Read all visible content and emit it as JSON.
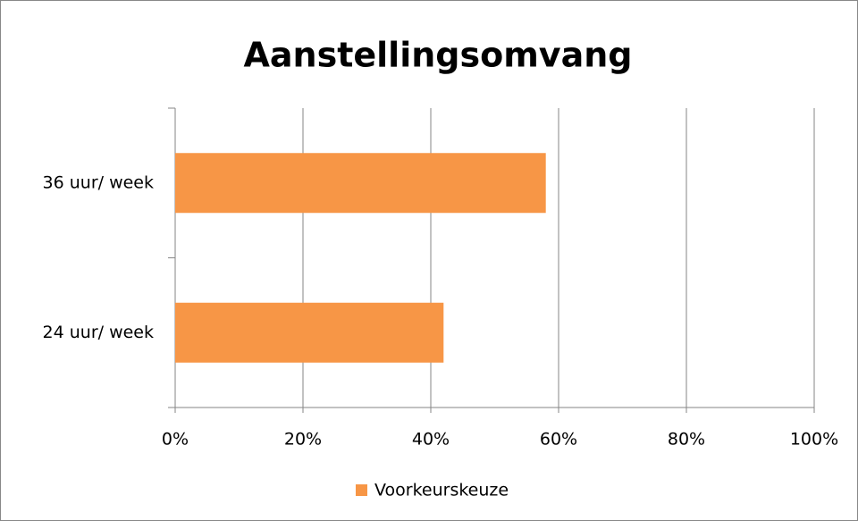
{
  "chart_data": {
    "type": "hbar",
    "title": "Aanstellingsomvang",
    "categories": [
      "36 uur/ week",
      "24 uur/ week"
    ],
    "series": [
      {
        "name": "Voorkeurskeuze",
        "color": "#f79646",
        "values": [
          58,
          42
        ]
      }
    ],
    "xlim": [
      0,
      100
    ],
    "xticks": [
      {
        "value": 0,
        "label": "0%"
      },
      {
        "value": 20,
        "label": "20%"
      },
      {
        "value": 40,
        "label": "40%"
      },
      {
        "value": 60,
        "label": "60%"
      },
      {
        "value": 80,
        "label": "80%"
      },
      {
        "value": 100,
        "label": "100%"
      }
    ],
    "grid": true,
    "legend": "bottom"
  }
}
